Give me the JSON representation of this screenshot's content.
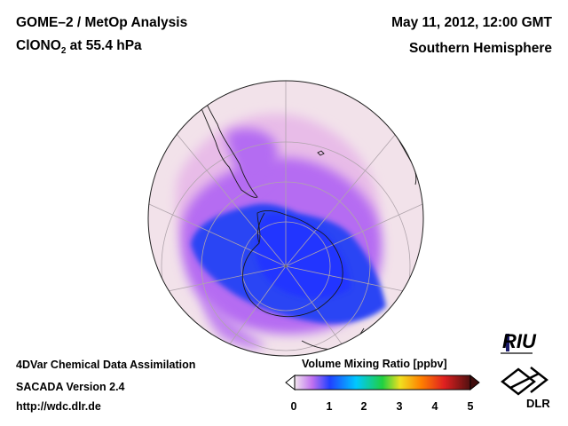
{
  "header": {
    "title": "GOME–2 / MetOp Analysis",
    "species_prefix": "ClONO",
    "species_sub": "2",
    "species_suffix": " at 55.4 hPa",
    "datetime": "May 11, 2012, 12:00 GMT",
    "hemisphere": "Southern Hemisphere"
  },
  "footer": {
    "method": "4DVar Chemical Data Assimilation",
    "version": "SACADA Version 2.4",
    "url": "http://wdc.dlr.de"
  },
  "colorbar": {
    "title": "Volume Mixing Ratio [ppbv]",
    "ticks": [
      "0",
      "1",
      "2",
      "3",
      "4",
      "5"
    ],
    "range": [
      0,
      5
    ],
    "colors": [
      "#f2e6ee",
      "#c070f0",
      "#2040ff",
      "#00c8ff",
      "#20d040",
      "#f0e020",
      "#ff8000",
      "#e02020",
      "#501010"
    ]
  },
  "logos": {
    "riu": "RIU",
    "dlr": "DLR"
  },
  "map": {
    "projection": "orthographic, south polar view",
    "palette": {
      "background": "#f2e2ea",
      "low": "#e6b0e8",
      "mid": "#b060f0",
      "high": "#2a40f0",
      "core": "#2030ff"
    }
  }
}
